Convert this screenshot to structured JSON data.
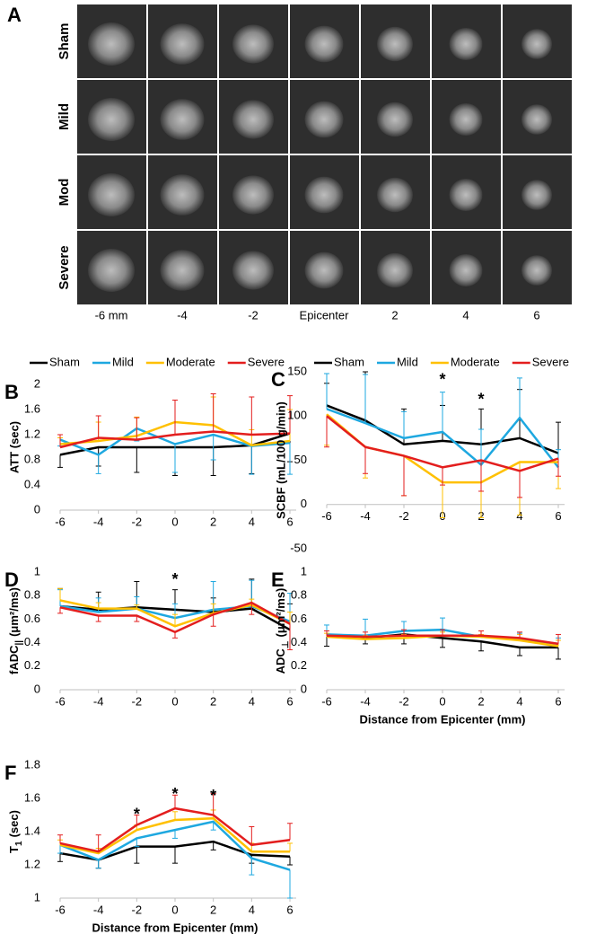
{
  "panel_a": {
    "label": "A",
    "rows": [
      "Sham",
      "Mild",
      "Mod",
      "Severe"
    ],
    "columns": [
      "-6 mm",
      "-4",
      "-2",
      "Epicenter",
      "2",
      "4",
      "6"
    ]
  },
  "chart_data": [
    {
      "type": "line",
      "label": "B",
      "ylabel": "ATT (sec)",
      "legend": "top",
      "x": [
        -6,
        -4,
        -2,
        0,
        2,
        4,
        6
      ],
      "xlim": [
        -6,
        6
      ],
      "xticks": [
        -6,
        -4,
        -2,
        0,
        2,
        4,
        6
      ],
      "ylim": [
        0,
        2
      ],
      "yticks": [
        0,
        0.4,
        0.8,
        1.2,
        1.6,
        2
      ],
      "series": [
        {
          "name": "Sham",
          "color": "#000000",
          "values": [
            0.88,
            1.0,
            1.0,
            1.0,
            1.0,
            1.03,
            1.22
          ],
          "errors": [
            0.2,
            0.3,
            0.4,
            0.45,
            0.45,
            0.45,
            0.45
          ],
          "error_direction": "down"
        },
        {
          "name": "Mild",
          "color": "#1ea8e0",
          "values": [
            1.12,
            0.88,
            1.3,
            1.05,
            1.2,
            1.02,
            1.07
          ],
          "errors": [
            0.1,
            0.3,
            0.2,
            0.45,
            0.4,
            0.45,
            0.5
          ],
          "error_direction": "down"
        },
        {
          "name": "Moderate",
          "color": "#ffc000",
          "values": [
            1.05,
            1.1,
            1.18,
            1.4,
            1.35,
            1.03,
            1.1
          ],
          "errors": [
            0.1,
            0.3,
            0.3,
            0.35,
            0.45,
            0.25,
            0.5
          ],
          "error_direction": "up"
        },
        {
          "name": "Severe",
          "color": "#e31e1e",
          "values": [
            1.0,
            1.15,
            1.12,
            1.2,
            1.25,
            1.2,
            1.22
          ],
          "errors": [
            0.2,
            0.35,
            0.35,
            0.55,
            0.6,
            0.6,
            0.6
          ],
          "error_direction": "up"
        }
      ]
    },
    {
      "type": "line",
      "label": "C",
      "ylabel": "SCBF (mL/100 g/min)",
      "legend": "top",
      "x": [
        -6,
        -4,
        -2,
        0,
        2,
        4,
        6
      ],
      "xlim": [
        -6,
        6
      ],
      "xticks": [
        -6,
        -4,
        -2,
        0,
        2,
        4,
        6
      ],
      "ylim": [
        -50,
        150
      ],
      "yticks": [
        -50,
        0,
        50,
        100,
        150
      ],
      "annotations": [
        {
          "text": "*",
          "x": 0,
          "y": 140
        },
        {
          "text": "*",
          "x": 2,
          "y": 118
        }
      ],
      "series": [
        {
          "name": "Sham",
          "color": "#000000",
          "values": [
            112,
            95,
            68,
            72,
            68,
            75,
            58
          ],
          "errors": [
            25,
            55,
            40,
            40,
            40,
            55,
            35
          ],
          "error_direction": "up"
        },
        {
          "name": "Mild",
          "color": "#1ea8e0",
          "values": [
            108,
            92,
            75,
            82,
            45,
            98,
            42
          ],
          "errors": [
            40,
            55,
            30,
            45,
            40,
            45,
            20
          ],
          "error_direction": "up"
        },
        {
          "name": "Moderate",
          "color": "#ffc000",
          "values": [
            102,
            65,
            55,
            25,
            25,
            48,
            48
          ],
          "errors": [
            35,
            35,
            45,
            40,
            40,
            60,
            30
          ],
          "error_direction": "down"
        },
        {
          "name": "Severe",
          "color": "#e31e1e",
          "values": [
            100,
            65,
            55,
            42,
            50,
            38,
            52
          ],
          "errors": [
            35,
            30,
            45,
            20,
            35,
            30,
            20
          ],
          "error_direction": "down"
        }
      ]
    },
    {
      "type": "line",
      "label": "D",
      "ylabel": {
        "text": "fADC",
        "sub": "||",
        "rest": "(μm²/ms)"
      },
      "x": [
        -6,
        -4,
        -2,
        0,
        2,
        4,
        6
      ],
      "xlim": [
        -6,
        6
      ],
      "xticks": [
        -6,
        -4,
        -2,
        0,
        2,
        4,
        6
      ],
      "ylim": [
        0,
        1
      ],
      "yticks": [
        0,
        0.2,
        0.4,
        0.6,
        0.8,
        1
      ],
      "annotations": [
        {
          "text": "*",
          "x": 0,
          "y": 0.93
        }
      ],
      "series": [
        {
          "color": "#000000",
          "values": [
            0.71,
            0.68,
            0.7,
            0.68,
            0.66,
            0.69,
            0.51
          ],
          "errors": [
            0.15,
            0.15,
            0.22,
            0.17,
            0.12,
            0.25,
            0.22
          ],
          "error_direction": "up"
        },
        {
          "color": "#1ea8e0",
          "values": [
            0.71,
            0.66,
            0.69,
            0.61,
            0.68,
            0.71,
            0.58
          ],
          "errors": [
            0.14,
            0.12,
            0.1,
            0.12,
            0.24,
            0.22,
            0.24
          ],
          "error_direction": "up"
        },
        {
          "color": "#ffc000",
          "values": [
            0.76,
            0.69,
            0.69,
            0.54,
            0.65,
            0.72,
            0.56
          ],
          "errors": [
            0.1,
            0.05,
            0.03,
            0.1,
            0.08,
            0.05,
            0.1
          ],
          "error_direction": "up"
        },
        {
          "color": "#e31e1e",
          "values": [
            0.7,
            0.63,
            0.63,
            0.49,
            0.64,
            0.74,
            0.56
          ],
          "errors": [
            0.05,
            0.05,
            0.05,
            0.05,
            0.1,
            0.1,
            0.22
          ],
          "error_direction": "down"
        }
      ]
    },
    {
      "type": "line",
      "label": "E",
      "ylabel": {
        "text": "ADC",
        "sub": "⊥",
        "rest": "(μm²/ms)"
      },
      "xlabel": "Distance from Epicenter (mm)",
      "x": [
        -6,
        -4,
        -2,
        0,
        2,
        4,
        6
      ],
      "xlim": [
        -6,
        6
      ],
      "xticks": [
        -6,
        -4,
        -2,
        0,
        2,
        4,
        6
      ],
      "ylim": [
        0,
        1
      ],
      "yticks": [
        0,
        0.2,
        0.4,
        0.6,
        0.8,
        1
      ],
      "series": [
        {
          "color": "#000000",
          "values": [
            0.47,
            0.44,
            0.47,
            0.44,
            0.41,
            0.36,
            0.36
          ],
          "errors": [
            0.1,
            0.05,
            0.08,
            0.08,
            0.08,
            0.07,
            0.1
          ],
          "error_direction": "down"
        },
        {
          "color": "#1ea8e0",
          "values": [
            0.47,
            0.46,
            0.5,
            0.51,
            0.45,
            0.43,
            0.39
          ],
          "errors": [
            0.08,
            0.14,
            0.08,
            0.1,
            0.05,
            0.05,
            0.05
          ],
          "error_direction": "up"
        },
        {
          "color": "#ffc000",
          "values": [
            0.45,
            0.43,
            0.44,
            0.46,
            0.45,
            0.42,
            0.37
          ],
          "errors": [
            0.03,
            0.03,
            0.03,
            0.03,
            0.02,
            0.05,
            0.05
          ],
          "error_direction": "up"
        },
        {
          "color": "#e31e1e",
          "values": [
            0.46,
            0.45,
            0.46,
            0.46,
            0.46,
            0.44,
            0.39
          ],
          "errors": [
            0.04,
            0.04,
            0.05,
            0.05,
            0.04,
            0.05,
            0.08
          ],
          "error_direction": "up"
        }
      ]
    },
    {
      "type": "line",
      "label": "F",
      "ylabel": {
        "text": "T",
        "sub": "1",
        "rest": "(sec)"
      },
      "xlabel": "Distance from Epicenter (mm)",
      "x": [
        -6,
        -4,
        -2,
        0,
        2,
        4,
        6
      ],
      "xlim": [
        -6,
        6
      ],
      "xticks": [
        -6,
        -4,
        -2,
        0,
        2,
        4,
        6
      ],
      "ylim": [
        1,
        1.8
      ],
      "yticks": [
        1,
        1.2,
        1.4,
        1.6,
        1.8
      ],
      "annotations": [
        {
          "text": "*",
          "x": -2,
          "y": 1.5
        },
        {
          "text": "*",
          "x": 0,
          "y": 1.62
        },
        {
          "text": "*",
          "x": 2,
          "y": 1.61
        }
      ],
      "series": [
        {
          "color": "#000000",
          "values": [
            1.27,
            1.23,
            1.31,
            1.31,
            1.34,
            1.26,
            1.25
          ],
          "errors": [
            0.05,
            0.05,
            0.1,
            0.1,
            0.05,
            0.05,
            0.05
          ],
          "error_direction": "down"
        },
        {
          "color": "#1ea8e0",
          "values": [
            1.32,
            1.23,
            1.36,
            1.41,
            1.46,
            1.24,
            1.17
          ],
          "errors": [
            0.05,
            0.05,
            0.05,
            0.05,
            0.05,
            0.1,
            0.17
          ],
          "error_direction": "down"
        },
        {
          "color": "#ffc000",
          "values": [
            1.32,
            1.27,
            1.41,
            1.47,
            1.48,
            1.28,
            1.28
          ],
          "errors": [
            0.03,
            0.03,
            0.03,
            0.05,
            0.05,
            0.05,
            0.05
          ],
          "error_direction": "up"
        },
        {
          "color": "#e31e1e",
          "values": [
            1.33,
            1.28,
            1.44,
            1.54,
            1.5,
            1.32,
            1.35
          ],
          "errors": [
            0.05,
            0.1,
            0.06,
            0.08,
            0.13,
            0.11,
            0.1
          ],
          "error_direction": "up"
        }
      ]
    }
  ]
}
